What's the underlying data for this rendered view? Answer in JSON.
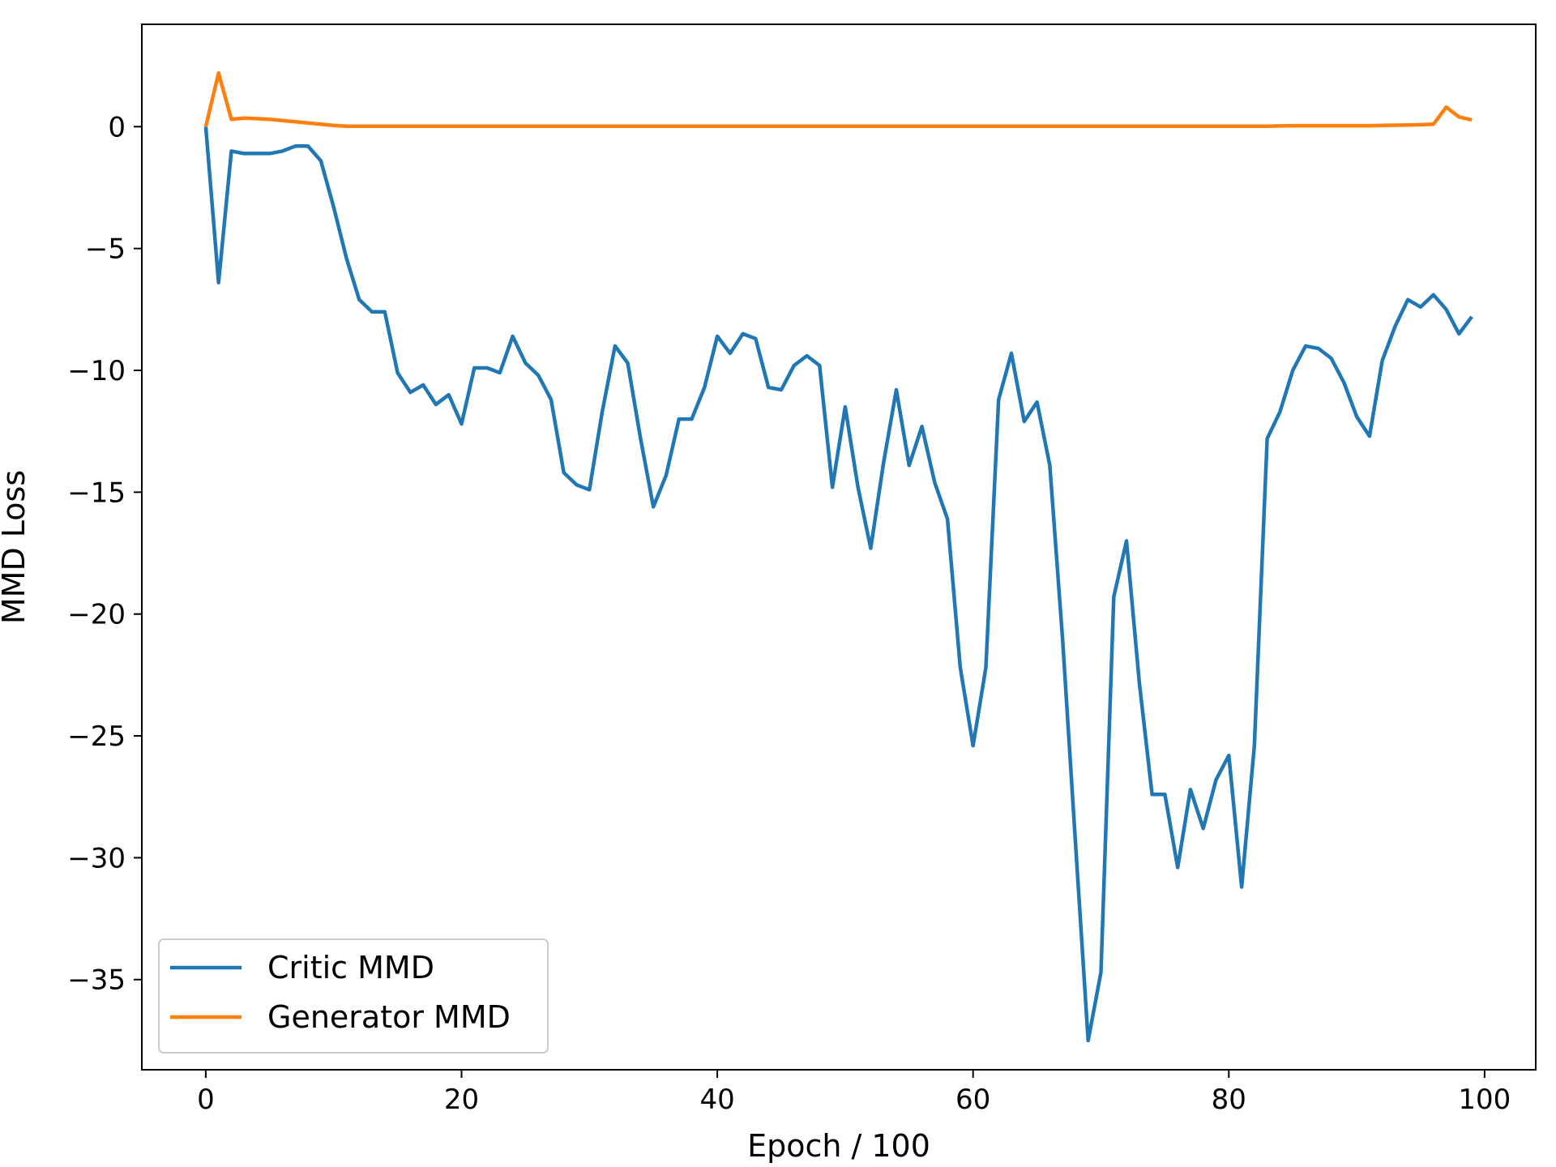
{
  "chart_data": {
    "type": "line",
    "title": "",
    "xlabel": "Epoch / 100",
    "ylabel": "MMD Loss",
    "xlim": [
      -5,
      104
    ],
    "ylim": [
      -38.7,
      4.2
    ],
    "xticks": [
      0,
      20,
      40,
      60,
      80,
      100
    ],
    "yticks": [
      0,
      -5,
      -10,
      -15,
      -20,
      -25,
      -30,
      -35
    ],
    "xtick_labels": [
      "0",
      "20",
      "40",
      "60",
      "80",
      "100"
    ],
    "ytick_labels": [
      "0",
      "−5",
      "−10",
      "−15",
      "−20",
      "−25",
      "−30",
      "−35"
    ],
    "grid": false,
    "legend_position": "lower-left",
    "series": [
      {
        "name": "Critic MMD",
        "color": "#1f77b4",
        "x": [
          0,
          1,
          2,
          3,
          4,
          5,
          6,
          7,
          8,
          9,
          10,
          11,
          12,
          13,
          14,
          15,
          16,
          17,
          18,
          19,
          20,
          21,
          22,
          23,
          24,
          25,
          26,
          27,
          28,
          29,
          30,
          31,
          32,
          33,
          34,
          35,
          36,
          37,
          38,
          39,
          40,
          41,
          42,
          43,
          44,
          45,
          46,
          47,
          48,
          49,
          50,
          51,
          52,
          53,
          54,
          55,
          56,
          57,
          58,
          59,
          60,
          61,
          62,
          63,
          64,
          65,
          66,
          67,
          68,
          69,
          70,
          71,
          72,
          73,
          74,
          75,
          76,
          77,
          78,
          79,
          80,
          81,
          82,
          83,
          84,
          85,
          86,
          87,
          88,
          89,
          90,
          91,
          92,
          93,
          94,
          95,
          96,
          97,
          98,
          99
        ],
        "values": [
          0,
          -6.4,
          -1.0,
          -1.1,
          -1.1,
          -1.1,
          -1.0,
          -0.8,
          -0.8,
          -1.4,
          -3.3,
          -5.4,
          -7.1,
          -7.6,
          -7.6,
          -10.1,
          -10.9,
          -10.6,
          -11.4,
          -11.0,
          -12.2,
          -9.9,
          -9.9,
          -10.1,
          -8.6,
          -9.7,
          -10.2,
          -11.2,
          -14.2,
          -14.7,
          -14.9,
          -11.7,
          -9.0,
          -9.7,
          -12.8,
          -15.6,
          -14.3,
          -12.0,
          -12.0,
          -10.7,
          -8.6,
          -9.3,
          -8.5,
          -8.7,
          -10.7,
          -10.8,
          -9.8,
          -9.4,
          -9.8,
          -14.8,
          -11.5,
          -14.8,
          -17.3,
          -13.8,
          -10.8,
          -13.9,
          -12.3,
          -14.6,
          -16.1,
          -22.2,
          -25.4,
          -22.2,
          -11.2,
          -9.3,
          -12.1,
          -11.3,
          -13.9,
          -21.0,
          -29.3,
          -37.5,
          -34.7,
          -19.3,
          -17.0,
          -22.8,
          -27.4,
          -27.4,
          -30.4,
          -27.2,
          -28.8,
          -26.8,
          -25.8,
          -31.2,
          -25.4,
          -12.8,
          -11.7,
          -10.0,
          -9.0,
          -9.1,
          -9.5,
          -10.5,
          -11.9,
          -12.7,
          -9.6,
          -8.2,
          -7.1,
          -7.4,
          -6.9,
          -7.5,
          -8.5,
          -7.8
        ]
      },
      {
        "name": "Generator MMD",
        "color": "#ff7f0e",
        "x": [
          0,
          1,
          2,
          3,
          4,
          5,
          6,
          7,
          8,
          9,
          10,
          11,
          12,
          13,
          14,
          15,
          16,
          17,
          18,
          19,
          20,
          21,
          22,
          23,
          24,
          25,
          26,
          27,
          28,
          29,
          30,
          31,
          32,
          33,
          34,
          35,
          36,
          37,
          38,
          39,
          40,
          41,
          42,
          43,
          44,
          45,
          46,
          47,
          48,
          49,
          50,
          51,
          52,
          53,
          54,
          55,
          56,
          57,
          58,
          59,
          60,
          61,
          62,
          63,
          64,
          65,
          66,
          67,
          68,
          69,
          70,
          71,
          72,
          73,
          74,
          75,
          76,
          77,
          78,
          79,
          80,
          81,
          82,
          83,
          84,
          85,
          86,
          87,
          88,
          89,
          90,
          91,
          92,
          93,
          94,
          95,
          96,
          97,
          98,
          99
        ],
        "values": [
          0,
          2.2,
          0.3,
          0.35,
          0.33,
          0.3,
          0.25,
          0.2,
          0.15,
          0.1,
          0.05,
          0.02,
          0.02,
          0.02,
          0.02,
          0.02,
          0.02,
          0.02,
          0.02,
          0.02,
          0.02,
          0.02,
          0.02,
          0.02,
          0.02,
          0.02,
          0.02,
          0.02,
          0.02,
          0.02,
          0.02,
          0.02,
          0.02,
          0.02,
          0.02,
          0.02,
          0.02,
          0.02,
          0.02,
          0.02,
          0.02,
          0.02,
          0.02,
          0.02,
          0.02,
          0.02,
          0.02,
          0.02,
          0.02,
          0.02,
          0.02,
          0.02,
          0.02,
          0.02,
          0.02,
          0.02,
          0.02,
          0.02,
          0.02,
          0.02,
          0.02,
          0.02,
          0.02,
          0.02,
          0.02,
          0.02,
          0.02,
          0.02,
          0.02,
          0.02,
          0.02,
          0.02,
          0.02,
          0.02,
          0.02,
          0.02,
          0.02,
          0.02,
          0.02,
          0.02,
          0.02,
          0.02,
          0.02,
          0.02,
          0.03,
          0.04,
          0.04,
          0.04,
          0.04,
          0.04,
          0.04,
          0.04,
          0.05,
          0.06,
          0.07,
          0.08,
          0.1,
          0.8,
          0.4,
          0.28
        ]
      }
    ]
  }
}
